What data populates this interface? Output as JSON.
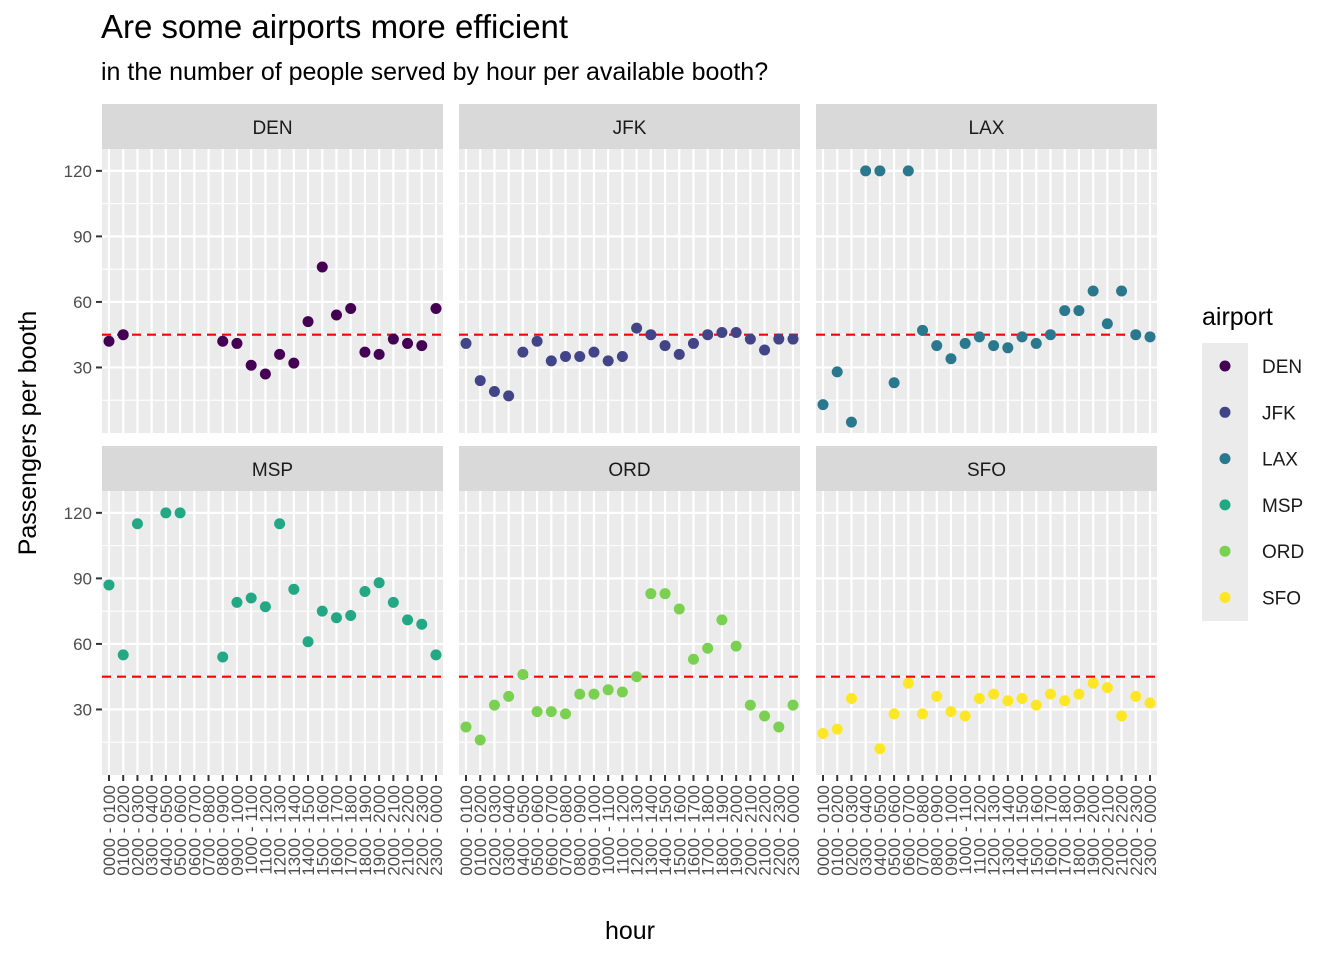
{
  "chart_data": {
    "type": "scatter",
    "title": "Are some airports more efficient",
    "subtitle": "in the number of people served by hour per available booth?",
    "xlabel": "hour",
    "ylabel": "Passengers per booth",
    "ylim": [
      0,
      130
    ],
    "yticks": [
      30,
      60,
      90,
      120
    ],
    "reference_line": {
      "y": 45,
      "color": "#ff0000",
      "style": "dashed"
    },
    "grid": true,
    "legend": {
      "title": "airport",
      "position": "right"
    },
    "x": [
      "0000 - 0100",
      "0100 - 0200",
      "0200 - 0300",
      "0300 - 0400",
      "0400 - 0500",
      "0500 - 0600",
      "0600 - 0700",
      "0700 - 0800",
      "0800 - 0900",
      "0900 - 1000",
      "1000 - 1100",
      "1100 - 1200",
      "1200 - 1300",
      "1300 - 1400",
      "1400 - 1500",
      "1500 - 1600",
      "1600 - 1700",
      "1700 - 1800",
      "1800 - 1900",
      "1900 - 2000",
      "2000 - 2100",
      "2100 - 2200",
      "2200 - 2300",
      "2300 - 0000"
    ],
    "series": [
      {
        "name": "DEN",
        "color": "#440154",
        "values": [
          42,
          45,
          null,
          null,
          null,
          null,
          null,
          null,
          42,
          41,
          31,
          27,
          36,
          32,
          51,
          76,
          54,
          57,
          37,
          36,
          43,
          41,
          40,
          57
        ]
      },
      {
        "name": "JFK",
        "color": "#414487",
        "values": [
          41,
          24,
          19,
          17,
          37,
          42,
          33,
          35,
          35,
          37,
          33,
          35,
          48,
          45,
          40,
          36,
          41,
          45,
          46,
          46,
          43,
          38,
          43,
          43
        ]
      },
      {
        "name": "LAX",
        "color": "#2a788e",
        "values": [
          13,
          28,
          5,
          120,
          120,
          23,
          120,
          47,
          40,
          34,
          41,
          44,
          40,
          39,
          44,
          41,
          45,
          56,
          56,
          65,
          50,
          65,
          45,
          44
        ]
      },
      {
        "name": "MSP",
        "color": "#22a884",
        "values": [
          87,
          55,
          115,
          null,
          120,
          120,
          null,
          null,
          54,
          79,
          81,
          77,
          115,
          85,
          61,
          75,
          72,
          73,
          84,
          88,
          79,
          71,
          69,
          55
        ]
      },
      {
        "name": "ORD",
        "color": "#7ad151",
        "values": [
          22,
          16,
          32,
          36,
          46,
          29,
          29,
          28,
          37,
          37,
          39,
          38,
          45,
          83,
          83,
          76,
          53,
          58,
          71,
          59,
          32,
          27,
          22,
          32
        ]
      },
      {
        "name": "SFO",
        "color": "#fde725",
        "values": [
          19,
          21,
          35,
          null,
          12,
          28,
          42,
          28,
          36,
          29,
          27,
          35,
          37,
          34,
          35,
          32,
          37,
          34,
          37,
          42,
          40,
          27,
          36,
          33
        ]
      }
    ]
  }
}
